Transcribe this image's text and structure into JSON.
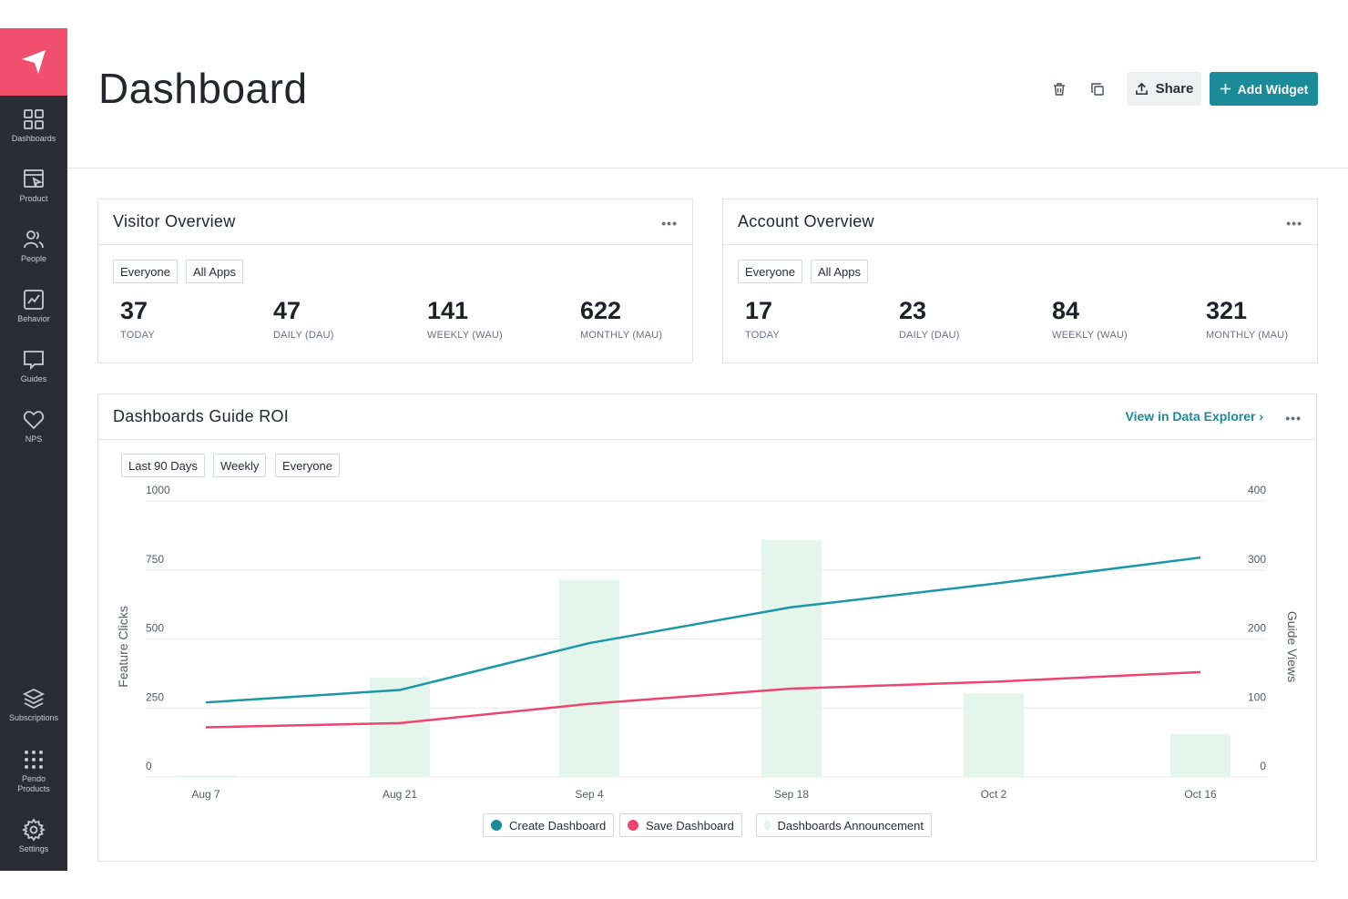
{
  "colors": {
    "brand": "#f0506e",
    "sidebar": "#2a2d36",
    "accent": "#1b8a99",
    "teal_line": "#1b97a5",
    "pink_line": "#ee4472",
    "bar": "#e4f6ec"
  },
  "sidebar": {
    "items": [
      {
        "label": "Dashboards",
        "icon": "grid-icon"
      },
      {
        "label": "Product",
        "icon": "product-icon"
      },
      {
        "label": "People",
        "icon": "people-icon"
      },
      {
        "label": "Behavior",
        "icon": "behavior-icon"
      },
      {
        "label": "Guides",
        "icon": "guides-icon"
      },
      {
        "label": "NPS",
        "icon": "heart-icon"
      }
    ],
    "bottom_items": [
      {
        "label": "Subscriptions",
        "icon": "layers-icon"
      },
      {
        "label_line1": "Pendo",
        "label_line2": "Products",
        "icon": "dots-grid-icon"
      },
      {
        "label": "Settings",
        "icon": "gear-icon"
      }
    ]
  },
  "header": {
    "title": "Dashboard",
    "share_label": "Share",
    "add_widget_label": "Add Widget"
  },
  "visitor_overview": {
    "title": "Visitor Overview",
    "filters": [
      "Everyone",
      "All Apps"
    ],
    "metrics": [
      {
        "value": "37",
        "label": "TODAY"
      },
      {
        "value": "47",
        "label": "DAILY (DAU)"
      },
      {
        "value": "141",
        "label": "WEEKLY (WAU)"
      },
      {
        "value": "622",
        "label": "MONTHLY (MAU)"
      }
    ]
  },
  "account_overview": {
    "title": "Account Overview",
    "filters": [
      "Everyone",
      "All Apps"
    ],
    "metrics": [
      {
        "value": "17",
        "label": "TODAY"
      },
      {
        "value": "23",
        "label": "DAILY (DAU)"
      },
      {
        "value": "84",
        "label": "WEEKLY (WAU)"
      },
      {
        "value": "321",
        "label": "MONTHLY (MAU)"
      }
    ]
  },
  "roi": {
    "title": "Dashboards Guide ROI",
    "explorer_link": "View in Data Explorer ›",
    "filters": [
      "Last 90 Days",
      "Weekly",
      "Everyone"
    ]
  },
  "chart_data": {
    "type": "bar",
    "title": "",
    "x_ticks": [
      "Aug 7",
      "Aug 21",
      "Sep 4",
      "Sep 18",
      "Oct 2",
      "Oct 16"
    ],
    "x": [
      "Aug 7",
      "Aug 21",
      "Sep 4",
      "Sep 18",
      "Oct 2",
      "Oct 16"
    ],
    "ylabel": "Feature Clicks",
    "ylabel_right": "Guide Views",
    "ylim": [
      0,
      1000
    ],
    "ylim_right": [
      0,
      400
    ],
    "yticks": [
      0,
      250,
      500,
      750,
      1000
    ],
    "yticks_right": [
      0,
      100,
      200,
      300,
      400
    ],
    "grid": true,
    "legend_position": "bottom-center",
    "series": [
      {
        "name": "Create Dashboard",
        "type": "line",
        "axis": "left",
        "color": "#1b97a5",
        "values": [
          270,
          315,
          485,
          615,
          700,
          795
        ]
      },
      {
        "name": "Save Dashboard",
        "type": "line",
        "axis": "left",
        "color": "#ee4472",
        "values": [
          180,
          195,
          265,
          320,
          345,
          380
        ]
      },
      {
        "name": "Dashboards Announcement",
        "type": "bar",
        "axis": "right",
        "color": "#e4f6ec",
        "values": [
          2,
          144,
          286,
          344,
          121,
          62
        ]
      }
    ]
  }
}
